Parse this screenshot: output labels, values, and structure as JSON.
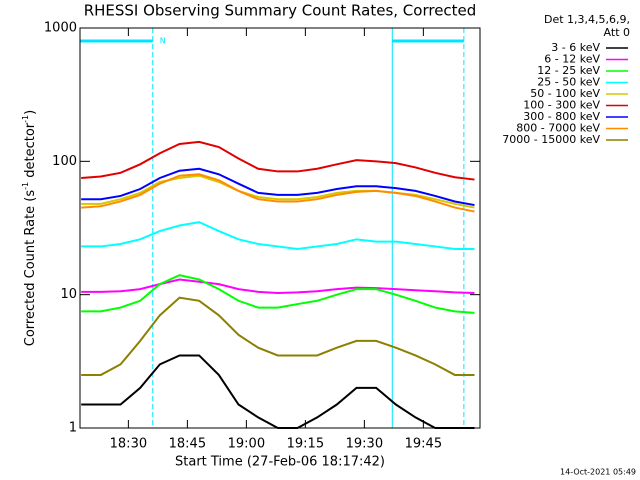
{
  "chart_data": {
    "type": "line",
    "title": "RHESSI Observing Summary Count Rates, Corrected",
    "x_label": "Start Time (27-Feb-06 18:17:42)",
    "y_label_parts": [
      "Corrected Count Rate (s",
      "-1",
      " detector",
      "-1",
      ")"
    ],
    "legend_title": [
      "Det 1,3,4,5,6,9,",
      "Att 0"
    ],
    "footer": "14-Oct-2021 05:49",
    "log_y": true,
    "xlim": [
      1097.7,
      1199.4
    ],
    "ylim": [
      1,
      1000
    ],
    "xticks": [
      {
        "value": 1110,
        "label": "18:30"
      },
      {
        "value": 1125,
        "label": "18:45"
      },
      {
        "value": 1140,
        "label": "19:00"
      },
      {
        "value": 1155,
        "label": "19:15"
      },
      {
        "value": 1170,
        "label": "19:30"
      },
      {
        "value": 1185,
        "label": "19:45"
      }
    ],
    "yticks": [
      1,
      10,
      100,
      1000
    ],
    "night_label": "N",
    "night_color": "#00e5ff",
    "night_intervals": [
      [
        1097.7,
        1116.2
      ],
      [
        1177.1,
        1195.3
      ]
    ],
    "x": [
      1098,
      1103,
      1108,
      1113,
      1118,
      1123,
      1128,
      1133,
      1138,
      1143,
      1148,
      1153,
      1158,
      1163,
      1168,
      1173,
      1178,
      1183,
      1188,
      1193,
      1198
    ],
    "series": [
      {
        "name": "3 - 6 keV",
        "color": "#000000",
        "values": [
          1.5,
          1.5,
          1.5,
          2,
          3,
          3.5,
          3.5,
          2.5,
          1.5,
          1.2,
          1,
          1,
          1.2,
          1.5,
          2,
          2,
          1.5,
          1.2,
          1,
          1,
          1
        ]
      },
      {
        "name": "6 - 12 keV",
        "color": "#ff00ff",
        "values": [
          10.5,
          10.5,
          10.6,
          11,
          12,
          13,
          12.5,
          12,
          11,
          10.5,
          10.3,
          10.4,
          10.6,
          11,
          11.3,
          11.2,
          11,
          10.8,
          10.6,
          10.4,
          10.3
        ]
      },
      {
        "name": "12 - 25 keV",
        "color": "#00ff00",
        "values": [
          7.5,
          7.5,
          8,
          9,
          12,
          14,
          13,
          11,
          9,
          8,
          8,
          8.5,
          9,
          10,
          11,
          11,
          10,
          9,
          8,
          7.5,
          7.3
        ]
      },
      {
        "name": "25 - 50 keV",
        "color": "#00ffff",
        "values": [
          23,
          23,
          24,
          26,
          30,
          33,
          35,
          30,
          26,
          24,
          23,
          22,
          23,
          24,
          26,
          25,
          25,
          24,
          23,
          22,
          22
        ]
      },
      {
        "name": "50 - 100 keV",
        "color": "#d4c800",
        "values": [
          48,
          48,
          52,
          58,
          70,
          75,
          78,
          70,
          60,
          54,
          52,
          52,
          54,
          58,
          60,
          60,
          58,
          56,
          52,
          48,
          45
        ]
      },
      {
        "name": "100 - 300 keV",
        "color": "#e00000",
        "values": [
          75,
          77,
          82,
          95,
          115,
          135,
          140,
          128,
          105,
          88,
          84,
          84,
          88,
          95,
          102,
          100,
          97,
          90,
          82,
          76,
          73
        ]
      },
      {
        "name": "300 - 800 keV",
        "color": "#0000ff",
        "values": [
          52,
          52,
          55,
          62,
          75,
          85,
          88,
          80,
          68,
          58,
          56,
          56,
          58,
          62,
          65,
          65,
          63,
          60,
          55,
          50,
          47
        ]
      },
      {
        "name": "800 - 7000 keV",
        "color": "#ff8c00",
        "values": [
          45,
          46,
          50,
          56,
          68,
          78,
          80,
          72,
          60,
          52,
          50,
          50,
          52,
          56,
          59,
          60,
          58,
          55,
          50,
          45,
          42
        ]
      },
      {
        "name": "7000 - 15000 keV",
        "color": "#8b8000",
        "values": [
          2.5,
          2.5,
          3,
          4.5,
          7,
          9.5,
          9,
          7,
          5,
          4,
          3.5,
          3.5,
          3.5,
          4,
          4.5,
          4.5,
          4,
          3.5,
          3,
          2.5,
          2.5
        ]
      }
    ]
  }
}
